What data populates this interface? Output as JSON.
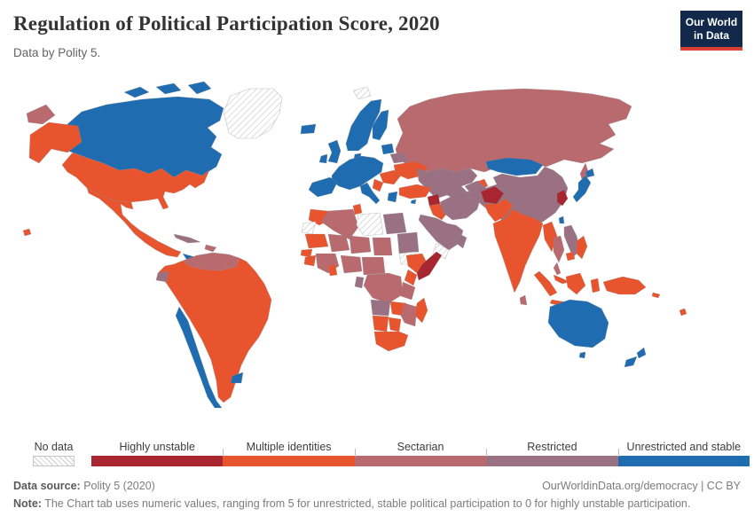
{
  "header": {
    "title": "Regulation of Political Participation Score, 2020",
    "subtitle": "Data by Polity 5.",
    "logo_line1": "Our World",
    "logo_line2": "in Data",
    "logo_bg": "#12294b",
    "logo_accent": "#dc3f34"
  },
  "legend": {
    "no_data_label": "No data",
    "categories": [
      {
        "key": "highly_unstable",
        "label": "Highly unstable",
        "color": "#A7262F"
      },
      {
        "key": "multiple_identities",
        "label": "Multiple identities",
        "color": "#E8542E"
      },
      {
        "key": "sectarian",
        "label": "Sectarian",
        "color": "#B96A6F"
      },
      {
        "key": "restricted",
        "label": "Restricted",
        "color": "#9A7183"
      },
      {
        "key": "unrestricted_stable",
        "label": "Unrestricted and stable",
        "color": "#1F6DB0"
      }
    ],
    "hatch_color": "#cdcdcd"
  },
  "map": {
    "regions": {
      "chukotka_russia": "sectarian",
      "alaska": "multiple_identities",
      "canada": "unrestricted_stable",
      "greenland": "no_data",
      "united_states": "multiple_identities",
      "hawaii": "multiple_identities",
      "mexico_central_america": "multiple_identities",
      "panama": "unrestricted_stable",
      "cuba": "restricted",
      "hispaniola": "sectarian",
      "venezuela_guyanas": "sectarian",
      "south_america": "multiple_identities",
      "ecuador": "restricted",
      "chile": "unrestricted_stable",
      "uruguay": "unrestricted_stable",
      "iceland": "unrestricted_stable",
      "united_kingdom": "unrestricted_stable",
      "ireland": "unrestricted_stable",
      "scandinavia": "unrestricted_stable",
      "svalbard": "no_data",
      "baltics": "unrestricted_stable",
      "western_europe": "unrestricted_stable",
      "iberia": "unrestricted_stable",
      "italy": "unrestricted_stable",
      "greece": "unrestricted_stable",
      "eastern_europe": "multiple_identities",
      "ukraine": "multiple_identities",
      "belarus": "restricted",
      "russia": "sectarian",
      "caucasus": "multiple_identities",
      "kazakhstan_central_asia": "restricted",
      "kyrgyzstan": "multiple_identities",
      "mongolia": "unrestricted_stable",
      "china": "restricted",
      "korea": "highly_unstable",
      "japan": "unrestricted_stable",
      "taiwan": "unrestricted_stable",
      "afghanistan": "highly_unstable",
      "pakistan": "multiple_identities",
      "india": "multiple_identities",
      "sri_lanka": "sectarian",
      "myanmar": "multiple_identities",
      "thailand": "sectarian",
      "vietnam_laos": "restricted",
      "cambodia": "multiple_identities",
      "malaysia": "multiple_identities",
      "indonesia": "multiple_identities",
      "philippines": "multiple_identities",
      "new_guinea": "multiple_identities",
      "solomon_islands": "multiple_identities",
      "fiji": "multiple_identities",
      "turkey": "multiple_identities",
      "syria": "highly_unstable",
      "iraq": "multiple_identities",
      "iran": "restricted",
      "saudi_arabia": "restricted",
      "yemen": "no_data",
      "oman": "restricted",
      "cyprus": "unrestricted_stable",
      "morocco": "multiple_identities",
      "western_sahara": "no_data",
      "algeria": "sectarian",
      "tunisia": "multiple_identities",
      "libya": "no_data",
      "egypt": "restricted",
      "mauritania": "multiple_identities",
      "mali": "sectarian",
      "niger": "sectarian",
      "chad": "sectarian",
      "sudan": "restricted",
      "south_sudan": "no_data",
      "senegal": "multiple_identities",
      "guinea_region": "multiple_identities",
      "west_africa": "sectarian",
      "ghana": "multiple_identities",
      "nigeria": "sectarian",
      "central_africa": "sectarian",
      "ethiopia": "multiple_identities",
      "somalia": "highly_unstable",
      "kenya": "multiple_identities",
      "dr_congo": "sectarian",
      "gabon": "restricted",
      "tanzania": "sectarian",
      "angola": "restricted",
      "zambia": "multiple_identities",
      "zimbabwe_mozambique": "sectarian",
      "namibia": "multiple_identities",
      "botswana": "multiple_identities",
      "south_africa": "multiple_identities",
      "madagascar": "multiple_identities",
      "australia": "unrestricted_stable",
      "new_zealand": "unrestricted_stable"
    }
  },
  "footer": {
    "source_label": "Data source:",
    "source_value": "Polity 5 (2020)",
    "attribution": "OurWorldinData.org/democracy | CC BY",
    "note_label": "Note:",
    "note_text": "The Chart tab uses numeric values, ranging from 5 for unrestricted, stable political participation to 0 for highly unstable participation."
  }
}
